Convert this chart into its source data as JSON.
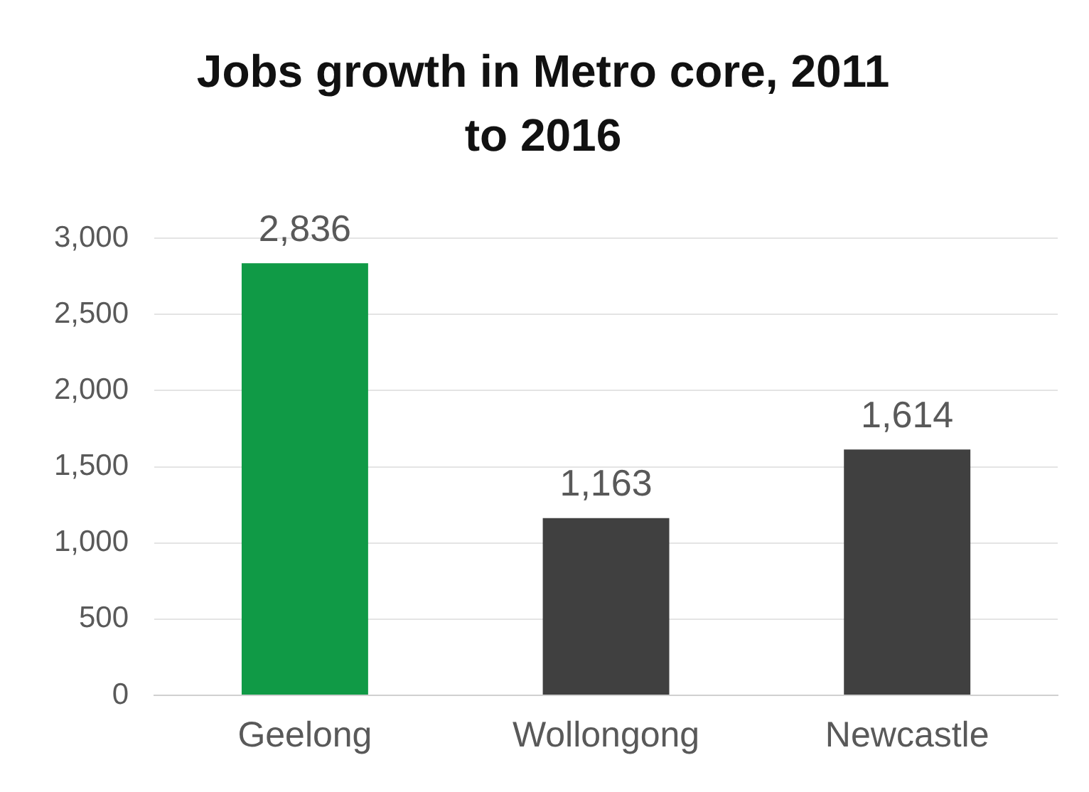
{
  "chart_data": {
    "type": "bar",
    "title": "Jobs growth in Metro core, 2011 to 2016",
    "categories": [
      "Geelong",
      "Wollongong",
      "Newcastle"
    ],
    "values": [
      2836,
      1163,
      1614
    ],
    "colors": [
      "#109a46",
      "#404040",
      "#404040"
    ],
    "value_labels": [
      "2,836",
      "1,163",
      "1,614"
    ],
    "ylim": [
      0,
      3000
    ],
    "yticks": [
      {
        "value": 0,
        "label": "0"
      },
      {
        "value": 500,
        "label": "500"
      },
      {
        "value": 1000,
        "label": "1,000"
      },
      {
        "value": 1500,
        "label": "1,500"
      },
      {
        "value": 2000,
        "label": "2,000"
      },
      {
        "value": 2500,
        "label": "2,500"
      },
      {
        "value": 3000,
        "label": "3,000"
      }
    ],
    "grid": "y",
    "legend": false
  }
}
